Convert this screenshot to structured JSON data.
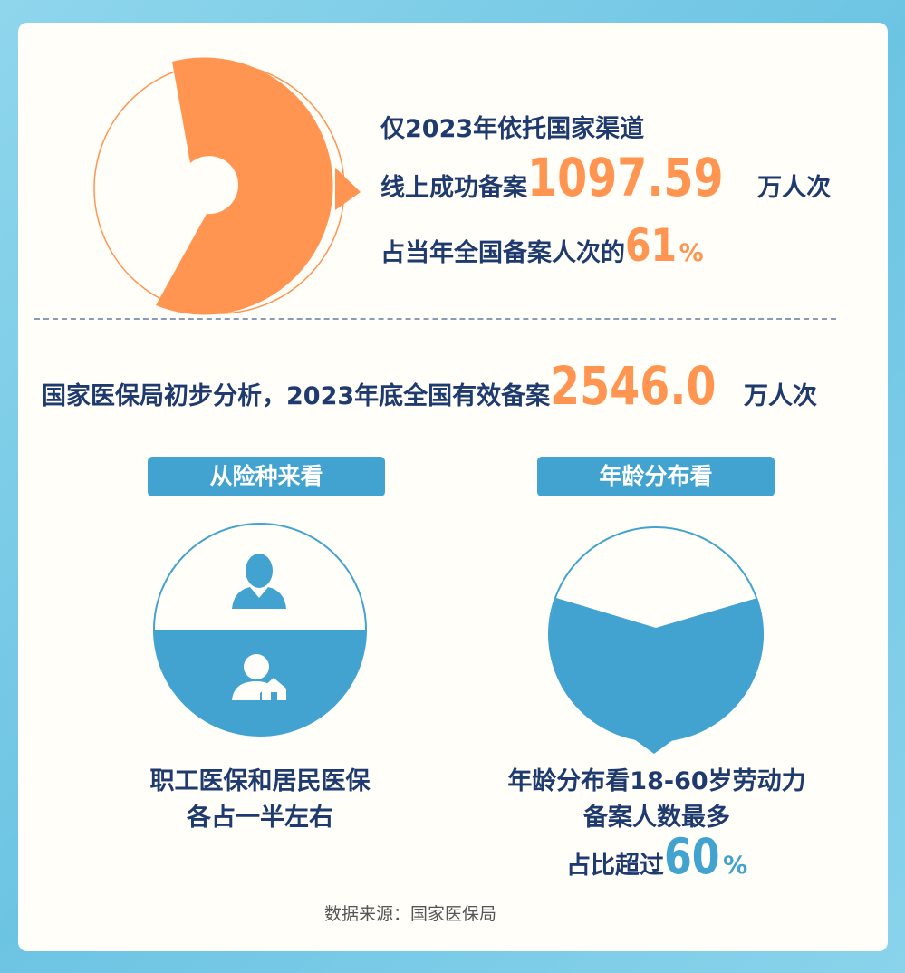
{
  "colors": {
    "orange": "#ff9550",
    "blue": "#42a3d0",
    "navy": "#1f3a6e"
  },
  "top": {
    "line1": "仅2023年依托国家渠道",
    "line2_pre": "线上成功备案",
    "line2_num": "1097.59",
    "line2_post": "万人次",
    "line3_pre": "占当年全国备案人次的",
    "line3_num": "61",
    "line3_pct": "%",
    "share_percent": 61
  },
  "middle": {
    "pre": "国家医保局初步分析，2023年底全国有效备案",
    "num": "2546.0",
    "post": "万人次"
  },
  "left": {
    "pill": "从险种来看",
    "icons": [
      "businessman-icon",
      "resident-home-icon"
    ],
    "line1": "职工医保和居民医保",
    "line2": "各占一半左右"
  },
  "right": {
    "pill": "年龄分布看",
    "line1": "年龄分布看18-60岁劳动力",
    "line2": "备案人数最多",
    "line3_pre": "占比超过",
    "line3_num": "60",
    "line3_pct": "%",
    "share_percent": 60
  },
  "source": "数据来源：国家医保局"
}
